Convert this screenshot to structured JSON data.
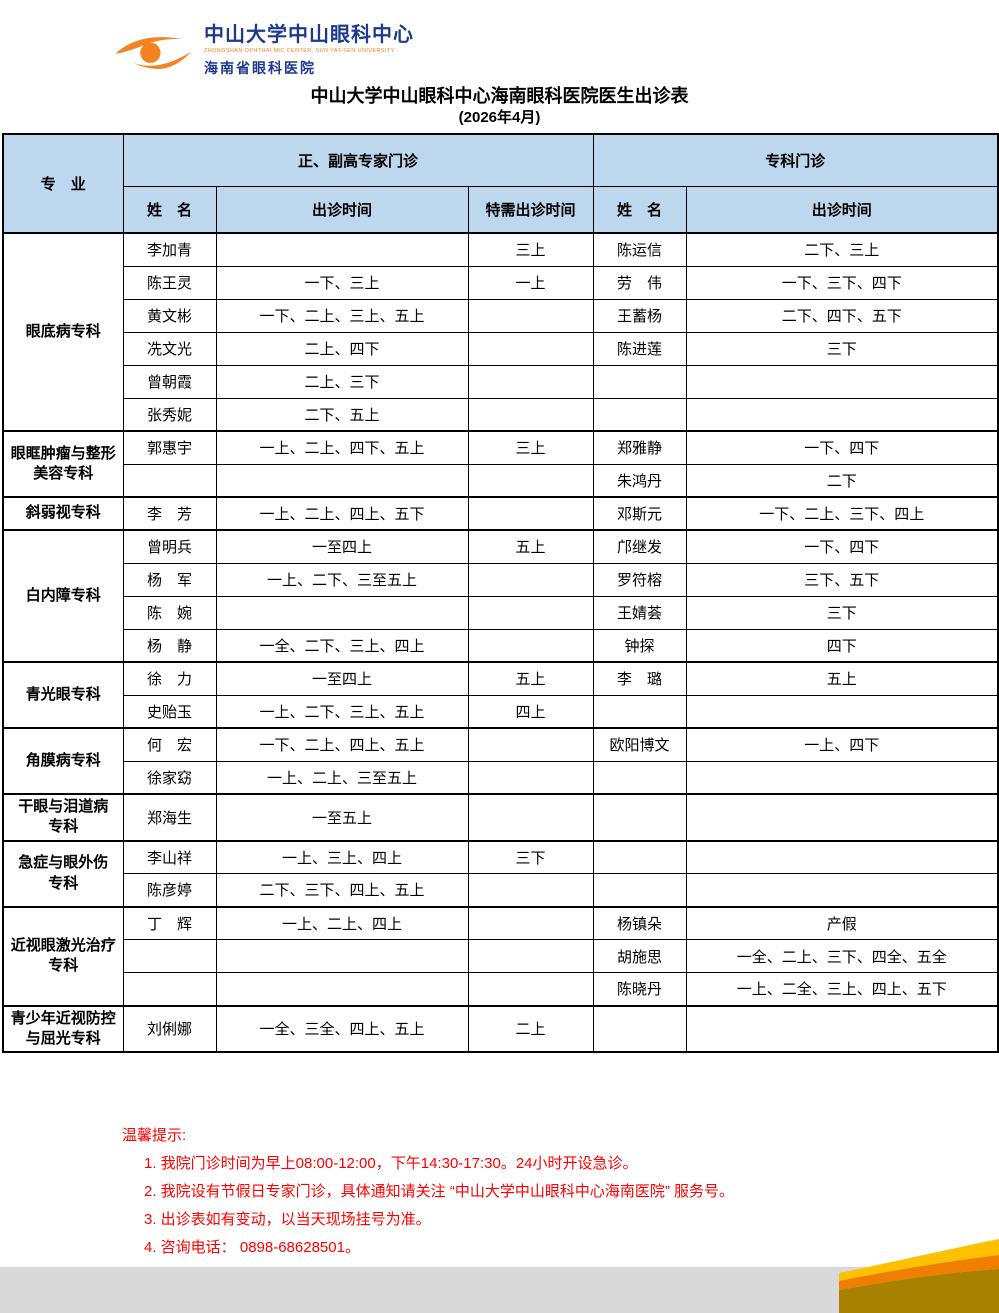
{
  "logo": {
    "org_cn": "中山大学中山眼科中心",
    "org_en": "ZHONGSHAN OPHTHALMIC CENTER, SUN YAT-SEN UNIVERSITY",
    "hospital": "海南省眼科医院",
    "icon": "eye-swoosh-icon"
  },
  "title": "中山大学中山眼科中心海南眼科医院医生出诊表",
  "subtitle": "(2026年4月)",
  "colors": {
    "header_bg": "#BDD7EE",
    "border": "#000000",
    "note_red": "#FF0000",
    "logo_navy": "#1E3A8F",
    "logo_orange": "#F58220",
    "gray_bar": "#D9D9D9",
    "wave_yellow": "#FFC000",
    "wave_orange": "#F07E00",
    "wave_dark_gold": "#A98100"
  },
  "table": {
    "col_specialty": "专　业",
    "group_expert": "正、副高专家门诊",
    "group_clinic": "专科门诊",
    "col_name_expert": "姓　名",
    "col_time_expert": "出诊时间",
    "col_special_time": "特需出诊时间",
    "col_name_clinic": "姓　名",
    "col_time_clinic": "出诊时间",
    "sections": [
      {
        "specialty": "眼底病专科",
        "rows": [
          {
            "name": "李加青",
            "time": "",
            "special": "三上",
            "cname": "陈运信",
            "ctime": "二下、三上"
          },
          {
            "name": "陈王灵",
            "time": "一下、三上",
            "special": "一上",
            "cname": "劳　伟",
            "ctime": "一下、三下、四下"
          },
          {
            "name": "黄文彬",
            "time": "一下、二上、三上、五上",
            "special": "",
            "cname": "王蓄杨",
            "ctime": "二下、四下、五下"
          },
          {
            "name": "冼文光",
            "time": "二上、四下",
            "special": "",
            "cname": "陈进莲",
            "ctime": "三下"
          },
          {
            "name": "曾朝霞",
            "time": "二上、三下",
            "special": "",
            "cname": "",
            "ctime": ""
          },
          {
            "name": "张秀妮",
            "time": "二下、五上",
            "special": "",
            "cname": "",
            "ctime": ""
          }
        ]
      },
      {
        "specialty": "眼眶肿瘤与整形\n美容专科",
        "rows": [
          {
            "name": "郭惠宇",
            "time": "一上、二上、四下、五上",
            "special": "三上",
            "cname": "郑雅静",
            "ctime": "一下、四下"
          },
          {
            "name": "",
            "time": "",
            "special": "",
            "cname": "朱鸿丹",
            "ctime": "二下"
          }
        ]
      },
      {
        "specialty": "斜弱视专科",
        "rows": [
          {
            "name": "李　芳",
            "time": "一上、二上、四上、五下",
            "special": "",
            "cname": "邓斯元",
            "ctime": "一下、二上、三下、四上"
          }
        ]
      },
      {
        "specialty": "白内障专科",
        "rows": [
          {
            "name": "曾明兵",
            "time": "一至四上",
            "special": "五上",
            "cname": "邝继发",
            "ctime": "一下、四下"
          },
          {
            "name": "杨　军",
            "time": "一上、二下、三至五上",
            "special": "",
            "cname": "罗符榕",
            "ctime": "三下、五下"
          },
          {
            "name": "陈　婉",
            "time": "",
            "special": "",
            "cname": "王婧荟",
            "ctime": "三下"
          },
          {
            "name": "杨　静",
            "time": "一全、二下、三上、四上",
            "special": "",
            "cname": "钟探",
            "ctime": "四下"
          }
        ]
      },
      {
        "specialty": "青光眼专科",
        "rows": [
          {
            "name": "徐　力",
            "time": "一至四上",
            "special": "五上",
            "cname": "李　璐",
            "ctime": "五上"
          },
          {
            "name": "史贻玉",
            "time": "一上、二下、三上、五上",
            "special": "四上",
            "cname": "",
            "ctime": ""
          }
        ]
      },
      {
        "specialty": "角膜病专科",
        "rows": [
          {
            "name": "何　宏",
            "time": "一下、二上、四上、五上",
            "special": "",
            "cname": "欧阳博文",
            "ctime": "一上、四下"
          },
          {
            "name": "徐家窈",
            "time": "一上、二上、三至五上",
            "special": "",
            "cname": "",
            "ctime": ""
          }
        ]
      },
      {
        "specialty": "干眼与泪道病\n专科",
        "rows": [
          {
            "name": "郑海生",
            "time": "一至五上",
            "special": "",
            "cname": "",
            "ctime": ""
          }
        ]
      },
      {
        "specialty": "急症与眼外伤\n专科",
        "rows": [
          {
            "name": "李山祥",
            "time": "一上、三上、四上",
            "special": "三下",
            "cname": "",
            "ctime": ""
          },
          {
            "name": "陈彦婷",
            "time": "二下、三下、四上、五上",
            "special": "",
            "cname": "",
            "ctime": ""
          }
        ]
      },
      {
        "specialty": "近视眼激光治疗\n专科",
        "rows": [
          {
            "name": "丁　辉",
            "time": "一上、二上、四上",
            "special": "",
            "cname": "杨镇朵",
            "ctime": "产假"
          },
          {
            "name": "",
            "time": "",
            "special": "",
            "cname": "胡施思",
            "ctime": "一全、二上、三下、四全、五全"
          },
          {
            "name": "",
            "time": "",
            "special": "",
            "cname": "陈晓丹",
            "ctime": "一上、二全、三上、四上、五下"
          }
        ]
      },
      {
        "specialty": "青少年近视防控\n与屈光专科",
        "rows": [
          {
            "name": "刘俐娜",
            "time": "一全、三全、四上、五上",
            "special": "二上",
            "cname": "",
            "ctime": ""
          }
        ]
      }
    ]
  },
  "notes": {
    "title": "温馨提示:",
    "items": [
      "1. 我院门诊时间为早上08:00-12:00，下午14:30-17:30。24小时开设急诊。",
      "2. 我院设有节假日专家门诊，具体通知请关注 “中山大学中山眼科中心海南医院” 服务号。",
      "3. 出诊表如有变动，以当天现场挂号为准。",
      "4. 咨询电话： 0898-68628501。"
    ]
  }
}
